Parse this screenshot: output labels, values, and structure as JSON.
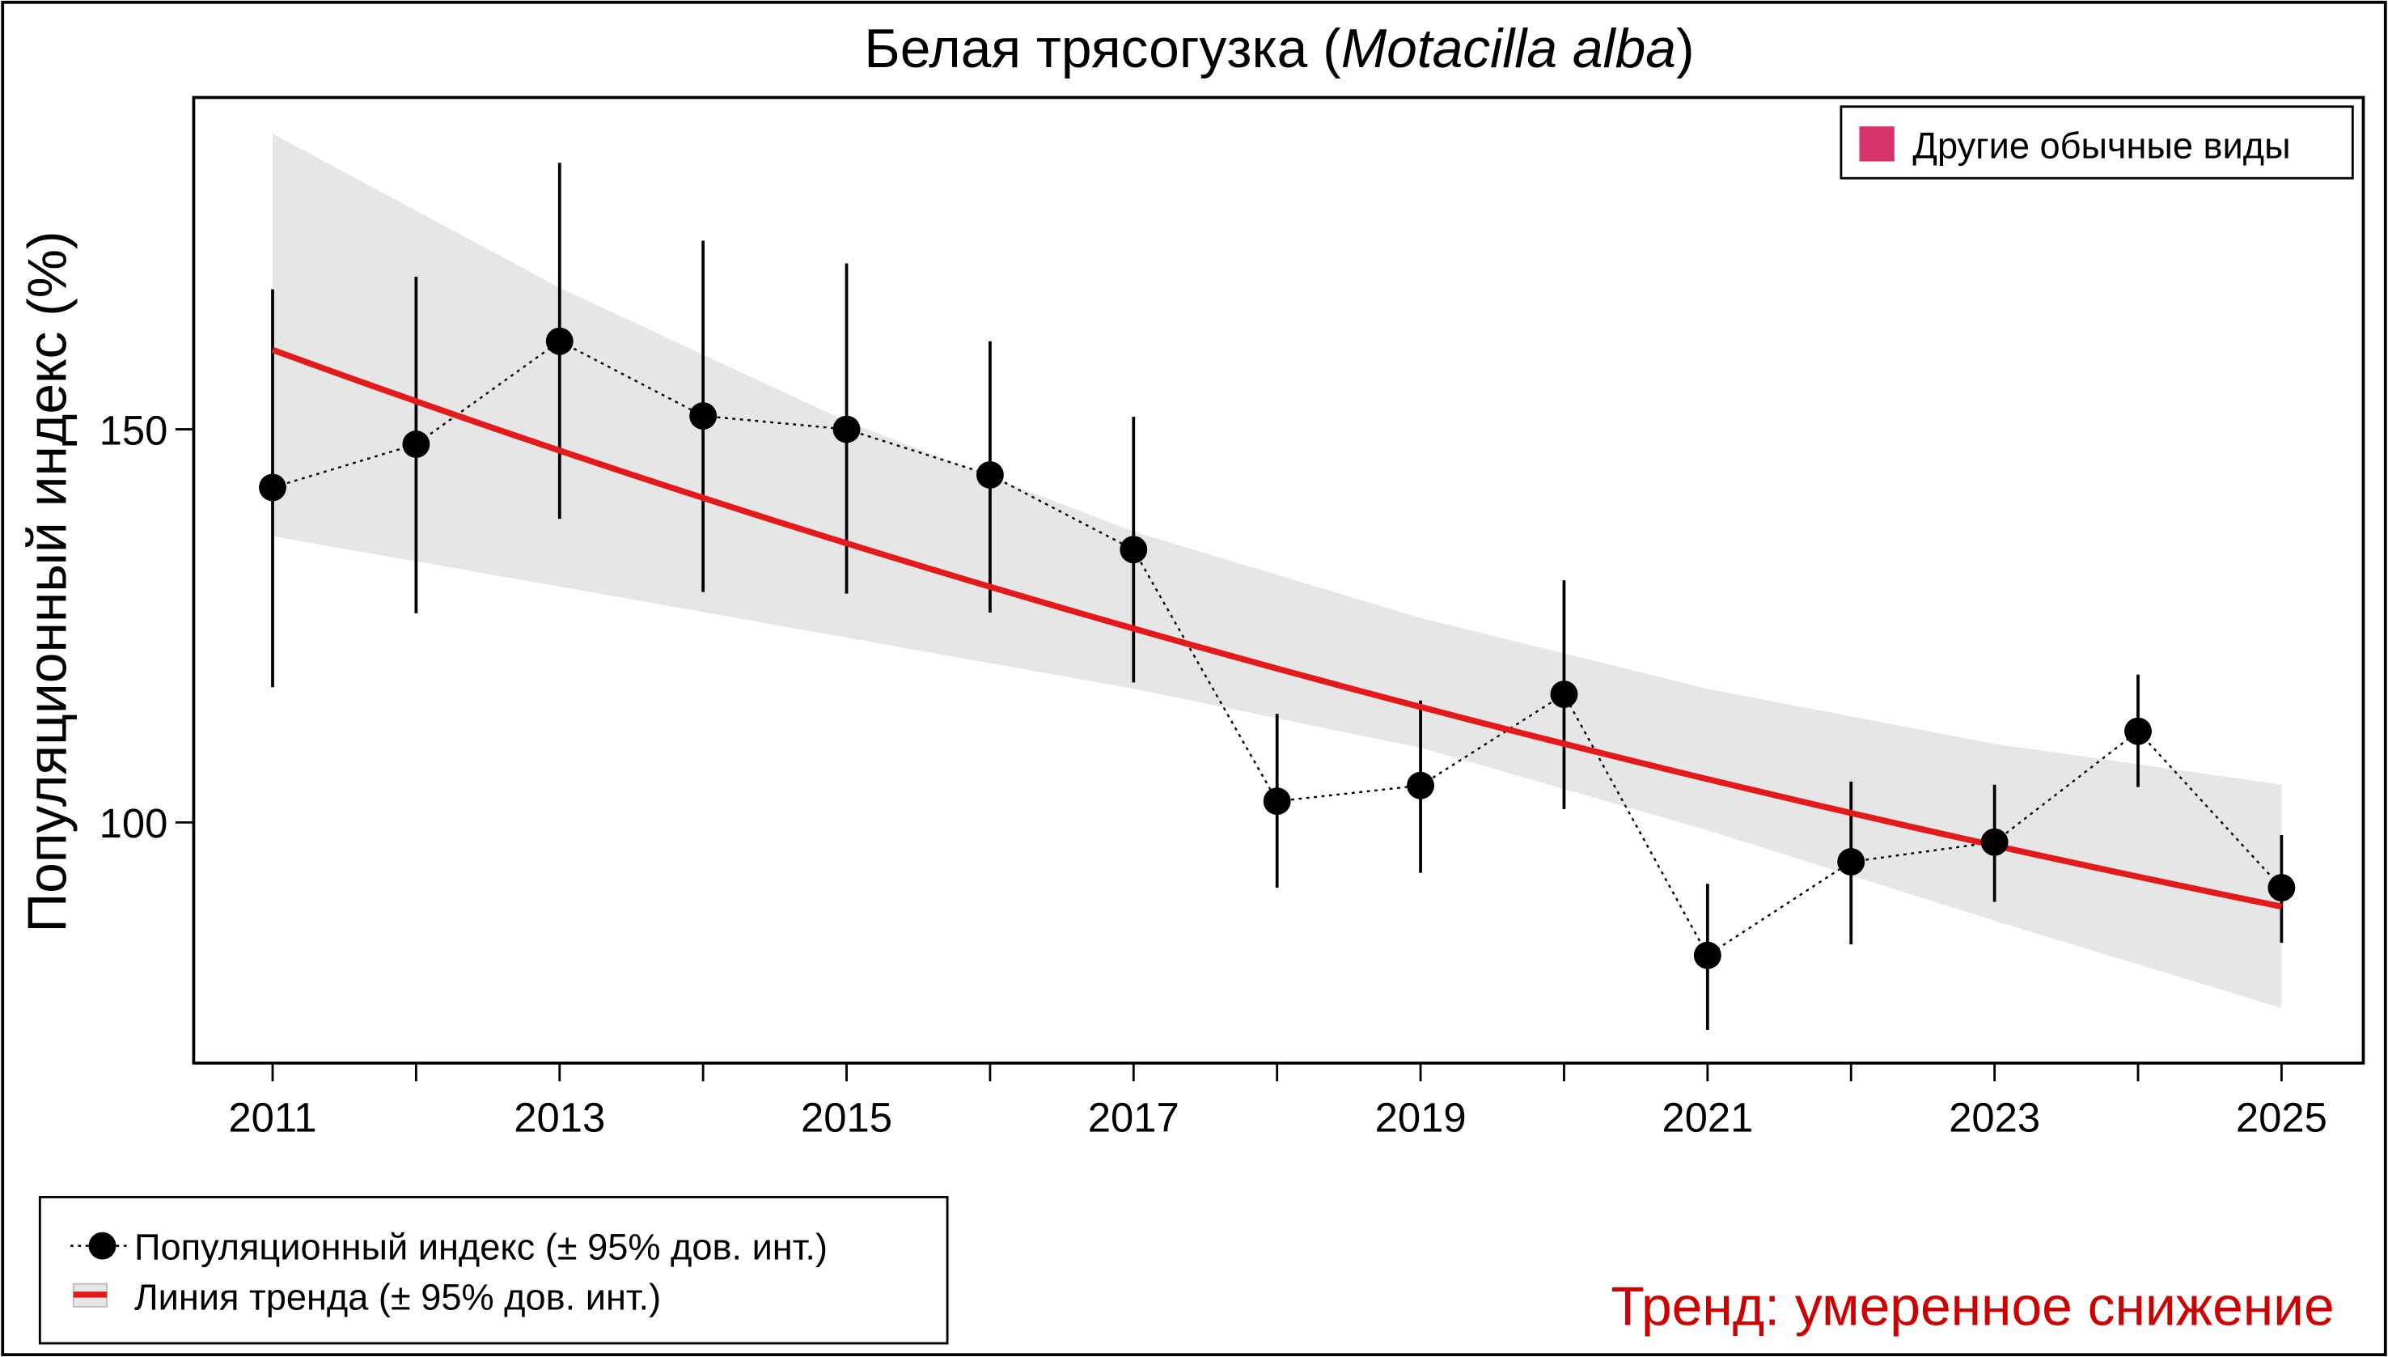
{
  "chart_data": {
    "type": "line",
    "title": {
      "prefix": "Белая трясогузка (",
      "latin": "Motacilla alba",
      "suffix": ")"
    },
    "xlabel": "",
    "ylabel": "Популяционный индекс (%)",
    "xlim": [
      2010.45,
      2025.57
    ],
    "ylim": [
      69.4,
      192.2
    ],
    "x_ticks": [
      2011,
      2012,
      2013,
      2014,
      2015,
      2016,
      2017,
      2018,
      2019,
      2020,
      2021,
      2022,
      2023,
      2024,
      2025
    ],
    "x_tick_labels": [
      "2011",
      "2013",
      "2015",
      "2017",
      "2019",
      "2021",
      "2023",
      "2025"
    ],
    "y_ticks": [
      100,
      150
    ],
    "y_tick_labels": [
      "100",
      "150"
    ],
    "grid": false,
    "colors": {
      "trend": "#e31a1c",
      "band": "#e6e6e6",
      "points": "#000000",
      "category": "#d6336c",
      "trend_text": "#cc0000"
    },
    "index_series": {
      "name": "Популяционный индекс (± 95% дов. инт.)",
      "x": [
        2011,
        2012,
        2013,
        2014,
        2015,
        2016,
        2017,
        2018,
        2019,
        2020,
        2021,
        2022,
        2023,
        2024,
        2025
      ],
      "y": [
        142.6,
        148.1,
        161.2,
        151.7,
        150.0,
        144.2,
        134.7,
        102.7,
        104.7,
        116.3,
        83.1,
        95.0,
        97.5,
        111.6,
        91.7
      ],
      "ci_low": [
        117.2,
        126.6,
        138.6,
        129.3,
        129.1,
        126.7,
        117.8,
        91.7,
        93.6,
        101.7,
        73.6,
        84.5,
        89.9,
        104.5,
        84.7
      ],
      "ci_high": [
        167.8,
        169.4,
        183.9,
        174.0,
        171.1,
        161.2,
        151.6,
        113.8,
        115.5,
        130.8,
        92.2,
        105.2,
        104.8,
        118.8,
        98.4
      ]
    },
    "trend_series": {
      "name": "Линия тренда (± 95% дов. инт.)",
      "x": [
        2011,
        2025
      ],
      "y": [
        160.1,
        89.3
      ],
      "band_x": [
        2011,
        2013,
        2015,
        2017,
        2019,
        2021,
        2023,
        2025
      ],
      "band_upper": [
        187.6,
        168.0,
        151.0,
        137.0,
        126.0,
        117.0,
        110.0,
        104.8
      ],
      "band_lower": [
        136.4,
        130.0,
        123.5,
        117.0,
        109.5,
        99.0,
        87.5,
        76.4
      ]
    },
    "category_legend": "Другие обычные виды",
    "legend_position": "bottom-left",
    "trend_label": "Тренд: умеренное снижение"
  }
}
